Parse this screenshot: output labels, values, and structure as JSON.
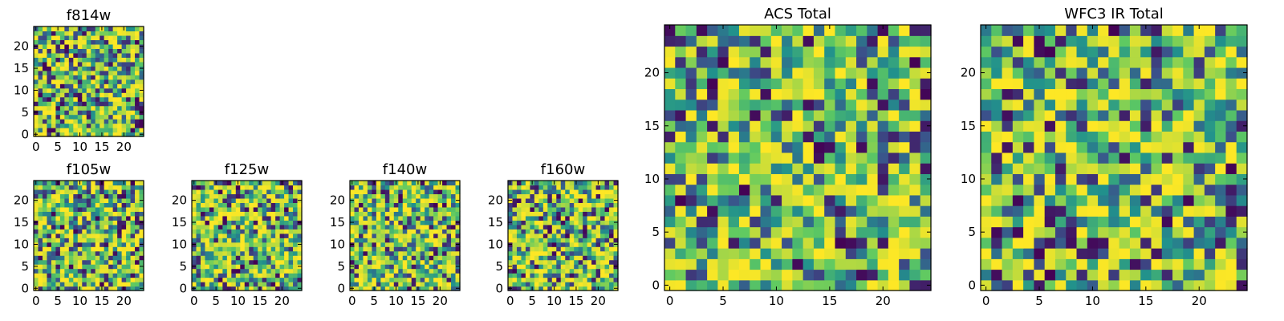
{
  "figure": {
    "background": "#ffffff",
    "colormap": [
      "#440154",
      "#3b528b",
      "#21918c",
      "#5ec962",
      "#fde725"
    ]
  },
  "chart_data": [
    {
      "type": "heatmap",
      "title": "f814w",
      "grid": false,
      "size": 25,
      "xlim": [
        -0.5,
        24.5
      ],
      "ylim": [
        -0.5,
        24.5
      ],
      "xticks": [
        0,
        5,
        10,
        15,
        20
      ],
      "yticks": [
        0,
        5,
        10,
        15,
        20
      ],
      "values": "random noise image (per-pixel values not legible)",
      "seed": 814
    },
    {
      "type": "heatmap",
      "title": "f105w",
      "grid": false,
      "size": 25,
      "xlim": [
        -0.5,
        24.5
      ],
      "ylim": [
        -0.5,
        24.5
      ],
      "xticks": [
        0,
        5,
        10,
        15,
        20
      ],
      "yticks": [
        0,
        5,
        10,
        15,
        20
      ],
      "values": "random noise image (per-pixel values not legible)",
      "seed": 105
    },
    {
      "type": "heatmap",
      "title": "f125w",
      "grid": false,
      "size": 25,
      "xlim": [
        -0.5,
        24.5
      ],
      "ylim": [
        -0.5,
        24.5
      ],
      "xticks": [
        0,
        5,
        10,
        15,
        20
      ],
      "yticks": [
        0,
        5,
        10,
        15,
        20
      ],
      "values": "random noise image (per-pixel values not legible)",
      "seed": 125
    },
    {
      "type": "heatmap",
      "title": "f140w",
      "grid": false,
      "size": 25,
      "xlim": [
        -0.5,
        24.5
      ],
      "ylim": [
        -0.5,
        24.5
      ],
      "xticks": [
        0,
        5,
        10,
        15,
        20
      ],
      "yticks": [
        0,
        5,
        10,
        15,
        20
      ],
      "values": "random noise image (per-pixel values not legible)",
      "seed": 140
    },
    {
      "type": "heatmap",
      "title": "f160w",
      "grid": false,
      "size": 25,
      "xlim": [
        -0.5,
        24.5
      ],
      "ylim": [
        -0.5,
        24.5
      ],
      "xticks": [
        0,
        5,
        10,
        15,
        20
      ],
      "yticks": [
        0,
        5,
        10,
        15,
        20
      ],
      "values": "random noise image (per-pixel values not legible)",
      "seed": 160
    },
    {
      "type": "heatmap",
      "title": "ACS Total",
      "grid": false,
      "size": 25,
      "xlim": [
        -0.5,
        24.5
      ],
      "ylim": [
        -0.5,
        24.5
      ],
      "xticks": [
        0,
        5,
        10,
        15,
        20
      ],
      "yticks": [
        0,
        5,
        10,
        15,
        20
      ],
      "values": "random noise image (per-pixel values not legible)",
      "seed": 1001
    },
    {
      "type": "heatmap",
      "title": "WFC3 IR Total",
      "grid": false,
      "size": 25,
      "xlim": [
        -0.5,
        24.5
      ],
      "ylim": [
        -0.5,
        24.5
      ],
      "xticks": [
        0,
        5,
        10,
        15,
        20
      ],
      "yticks": [
        0,
        5,
        10,
        15,
        20
      ],
      "values": "random noise image (per-pixel values not legible)",
      "seed": 2002
    }
  ]
}
